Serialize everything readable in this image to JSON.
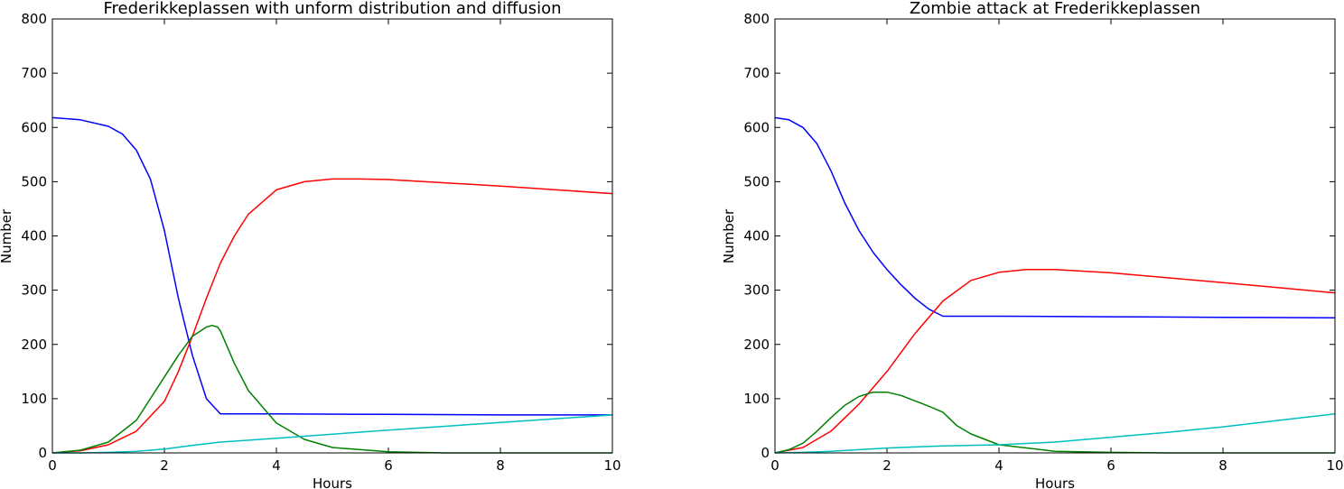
{
  "chart_data": [
    {
      "type": "line",
      "title": "Frederikkeplassen with unform distribution and diffusion",
      "xlabel": "Hours",
      "ylabel": "Number",
      "xlim": [
        0,
        10
      ],
      "ylim": [
        0,
        800
      ],
      "xticks": [
        "0",
        "2",
        "4",
        "6",
        "8",
        "10"
      ],
      "yticks": [
        "0",
        "100",
        "200",
        "300",
        "400",
        "500",
        "600",
        "700",
        "800"
      ],
      "grid": false,
      "series": [
        {
          "color": "#0000ff",
          "x": [
            0,
            0.5,
            1,
            1.25,
            1.5,
            1.75,
            2,
            2.25,
            2.5,
            2.75,
            3,
            3.5,
            4,
            6,
            8,
            10
          ],
          "y": [
            618,
            614,
            602,
            588,
            558,
            505,
            410,
            285,
            180,
            100,
            72,
            72,
            72,
            71,
            70,
            70
          ]
        },
        {
          "color": "#ff0000",
          "x": [
            0,
            0.5,
            1,
            1.5,
            2,
            2.25,
            2.5,
            2.75,
            3,
            3.25,
            3.5,
            4,
            4.5,
            5,
            5.5,
            6,
            8,
            10
          ],
          "y": [
            0,
            4,
            15,
            40,
            95,
            150,
            215,
            285,
            350,
            400,
            440,
            485,
            500,
            505,
            505,
            504,
            492,
            478
          ]
        },
        {
          "color": "#008000",
          "x": [
            0,
            0.5,
            1,
            1.5,
            2,
            2.25,
            2.5,
            2.75,
            2.85,
            2.95,
            3,
            3.25,
            3.5,
            4,
            4.5,
            5,
            6,
            7,
            8,
            10
          ],
          "y": [
            0,
            5,
            20,
            60,
            140,
            180,
            215,
            232,
            235,
            232,
            225,
            165,
            115,
            55,
            25,
            10,
            2,
            0,
            0,
            0
          ]
        },
        {
          "color": "#00bfbf",
          "x": [
            0,
            0.5,
            1,
            1.5,
            2,
            2.5,
            3,
            4,
            6,
            8,
            10
          ],
          "y": [
            0,
            0,
            1,
            3,
            7,
            14,
            20,
            27,
            42,
            56,
            70
          ]
        }
      ]
    },
    {
      "type": "line",
      "title": "Zombie attack at Frederikkeplassen",
      "xlabel": "Hours",
      "ylabel": "Number",
      "xlim": [
        0,
        10
      ],
      "ylim": [
        0,
        800
      ],
      "xticks": [
        "0",
        "2",
        "4",
        "6",
        "8",
        "10"
      ],
      "yticks": [
        "0",
        "100",
        "200",
        "300",
        "400",
        "500",
        "600",
        "700",
        "800"
      ],
      "grid": false,
      "series": [
        {
          "color": "#0000ff",
          "x": [
            0,
            0.25,
            0.5,
            0.75,
            1,
            1.25,
            1.5,
            1.75,
            2,
            2.25,
            2.5,
            2.75,
            3,
            4,
            6,
            8,
            10
          ],
          "y": [
            618,
            614,
            600,
            570,
            520,
            460,
            410,
            370,
            338,
            310,
            285,
            265,
            252,
            252,
            251,
            250,
            249
          ]
        },
        {
          "color": "#ff0000",
          "x": [
            0,
            0.5,
            1,
            1.5,
            2,
            2.5,
            3,
            3.5,
            4,
            4.5,
            5,
            6,
            8,
            10
          ],
          "y": [
            0,
            10,
            40,
            90,
            150,
            220,
            280,
            318,
            333,
            338,
            338,
            332,
            314,
            295
          ]
        },
        {
          "color": "#008000",
          "x": [
            0,
            0.25,
            0.5,
            0.75,
            1,
            1.25,
            1.5,
            1.75,
            2,
            2.25,
            2.5,
            2.75,
            3,
            3.25,
            3.5,
            4,
            5,
            6,
            7,
            8,
            10
          ],
          "y": [
            0,
            6,
            18,
            40,
            65,
            88,
            104,
            112,
            112,
            106,
            96,
            86,
            75,
            50,
            35,
            15,
            3,
            1,
            0,
            0,
            0
          ]
        },
        {
          "color": "#00bfbf",
          "x": [
            0,
            0.5,
            1,
            1.5,
            2,
            2.5,
            3,
            4,
            5,
            6,
            7,
            8,
            9,
            10
          ],
          "y": [
            0,
            1,
            3,
            6,
            9,
            11,
            13,
            15,
            20,
            29,
            38,
            48,
            60,
            72
          ]
        }
      ]
    }
  ]
}
